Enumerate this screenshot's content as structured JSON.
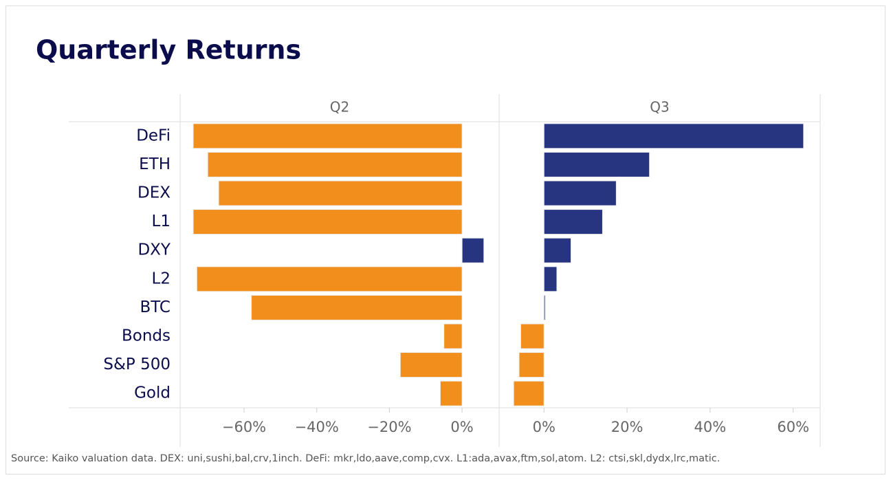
{
  "chart_data": {
    "type": "bar",
    "orientation": "horizontal",
    "title": "Quarterly Returns",
    "categories": [
      "DeFi",
      "ETH",
      "DEX",
      "L1",
      "DXY",
      "L2",
      "BTC",
      "Bonds",
      "S&P 500",
      "Gold"
    ],
    "positive_color": "#27347f",
    "negative_color": "#f28e1c",
    "series": [
      {
        "name": "Q2",
        "values": [
          -74,
          -70,
          -67,
          -74,
          6,
          -73,
          -58,
          -5,
          -17,
          -6
        ],
        "xlim": [
          -77.6,
          10.2
        ],
        "xticks": [
          {
            "value": -60,
            "label": "−60%"
          },
          {
            "value": -40,
            "label": "−40%"
          },
          {
            "value": -20,
            "label": "−20%"
          },
          {
            "value": 0,
            "label": "0%"
          }
        ]
      },
      {
        "name": "Q3",
        "values": [
          62.5,
          25.4,
          17.4,
          14.1,
          6.5,
          3.1,
          0.3,
          -5.6,
          -6,
          -7.3
        ],
        "xlim": [
          -10.8,
          66.5
        ],
        "xticks": [
          {
            "value": 0,
            "label": "0%"
          },
          {
            "value": 20,
            "label": "20%"
          },
          {
            "value": 40,
            "label": "40%"
          },
          {
            "value": 60,
            "label": "60%"
          }
        ]
      }
    ],
    "source": "Source: Kaiko valuation data. DEX: uni,sushi,bal,crv,1inch. DeFi: mkr,ldo,aave,comp,cvx. L1:ada,avax,ftm,sol,atom. L2: ctsi,skl,dydx,lrc,matic."
  }
}
